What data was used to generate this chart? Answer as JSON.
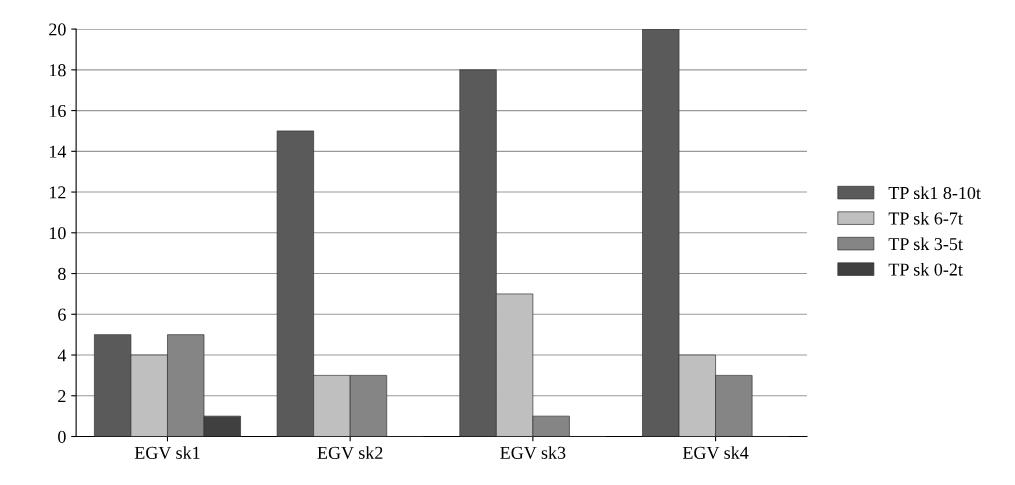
{
  "chart_data": {
    "type": "bar",
    "categories": [
      "EGV sk1",
      "EGV sk2",
      "EGV sk3",
      "EGV sk4"
    ],
    "series": [
      {
        "name": "TP sk1 8-10t",
        "color": "#5a5a5a",
        "values": [
          5,
          15,
          18,
          20
        ]
      },
      {
        "name": "TP sk 6-7t",
        "color": "#bfbfbf",
        "values": [
          4,
          3,
          7,
          4
        ]
      },
      {
        "name": "TP sk 3-5t",
        "color": "#858585",
        "values": [
          5,
          3,
          1,
          3
        ]
      },
      {
        "name": "TP sk 0-2t",
        "color": "#404040",
        "values": [
          1,
          0,
          0,
          0
        ]
      }
    ],
    "ylim": [
      0,
      20
    ],
    "yticks": [
      0,
      2,
      4,
      6,
      8,
      10,
      12,
      14,
      16,
      18,
      20
    ],
    "grid": "y",
    "legend": "right"
  }
}
